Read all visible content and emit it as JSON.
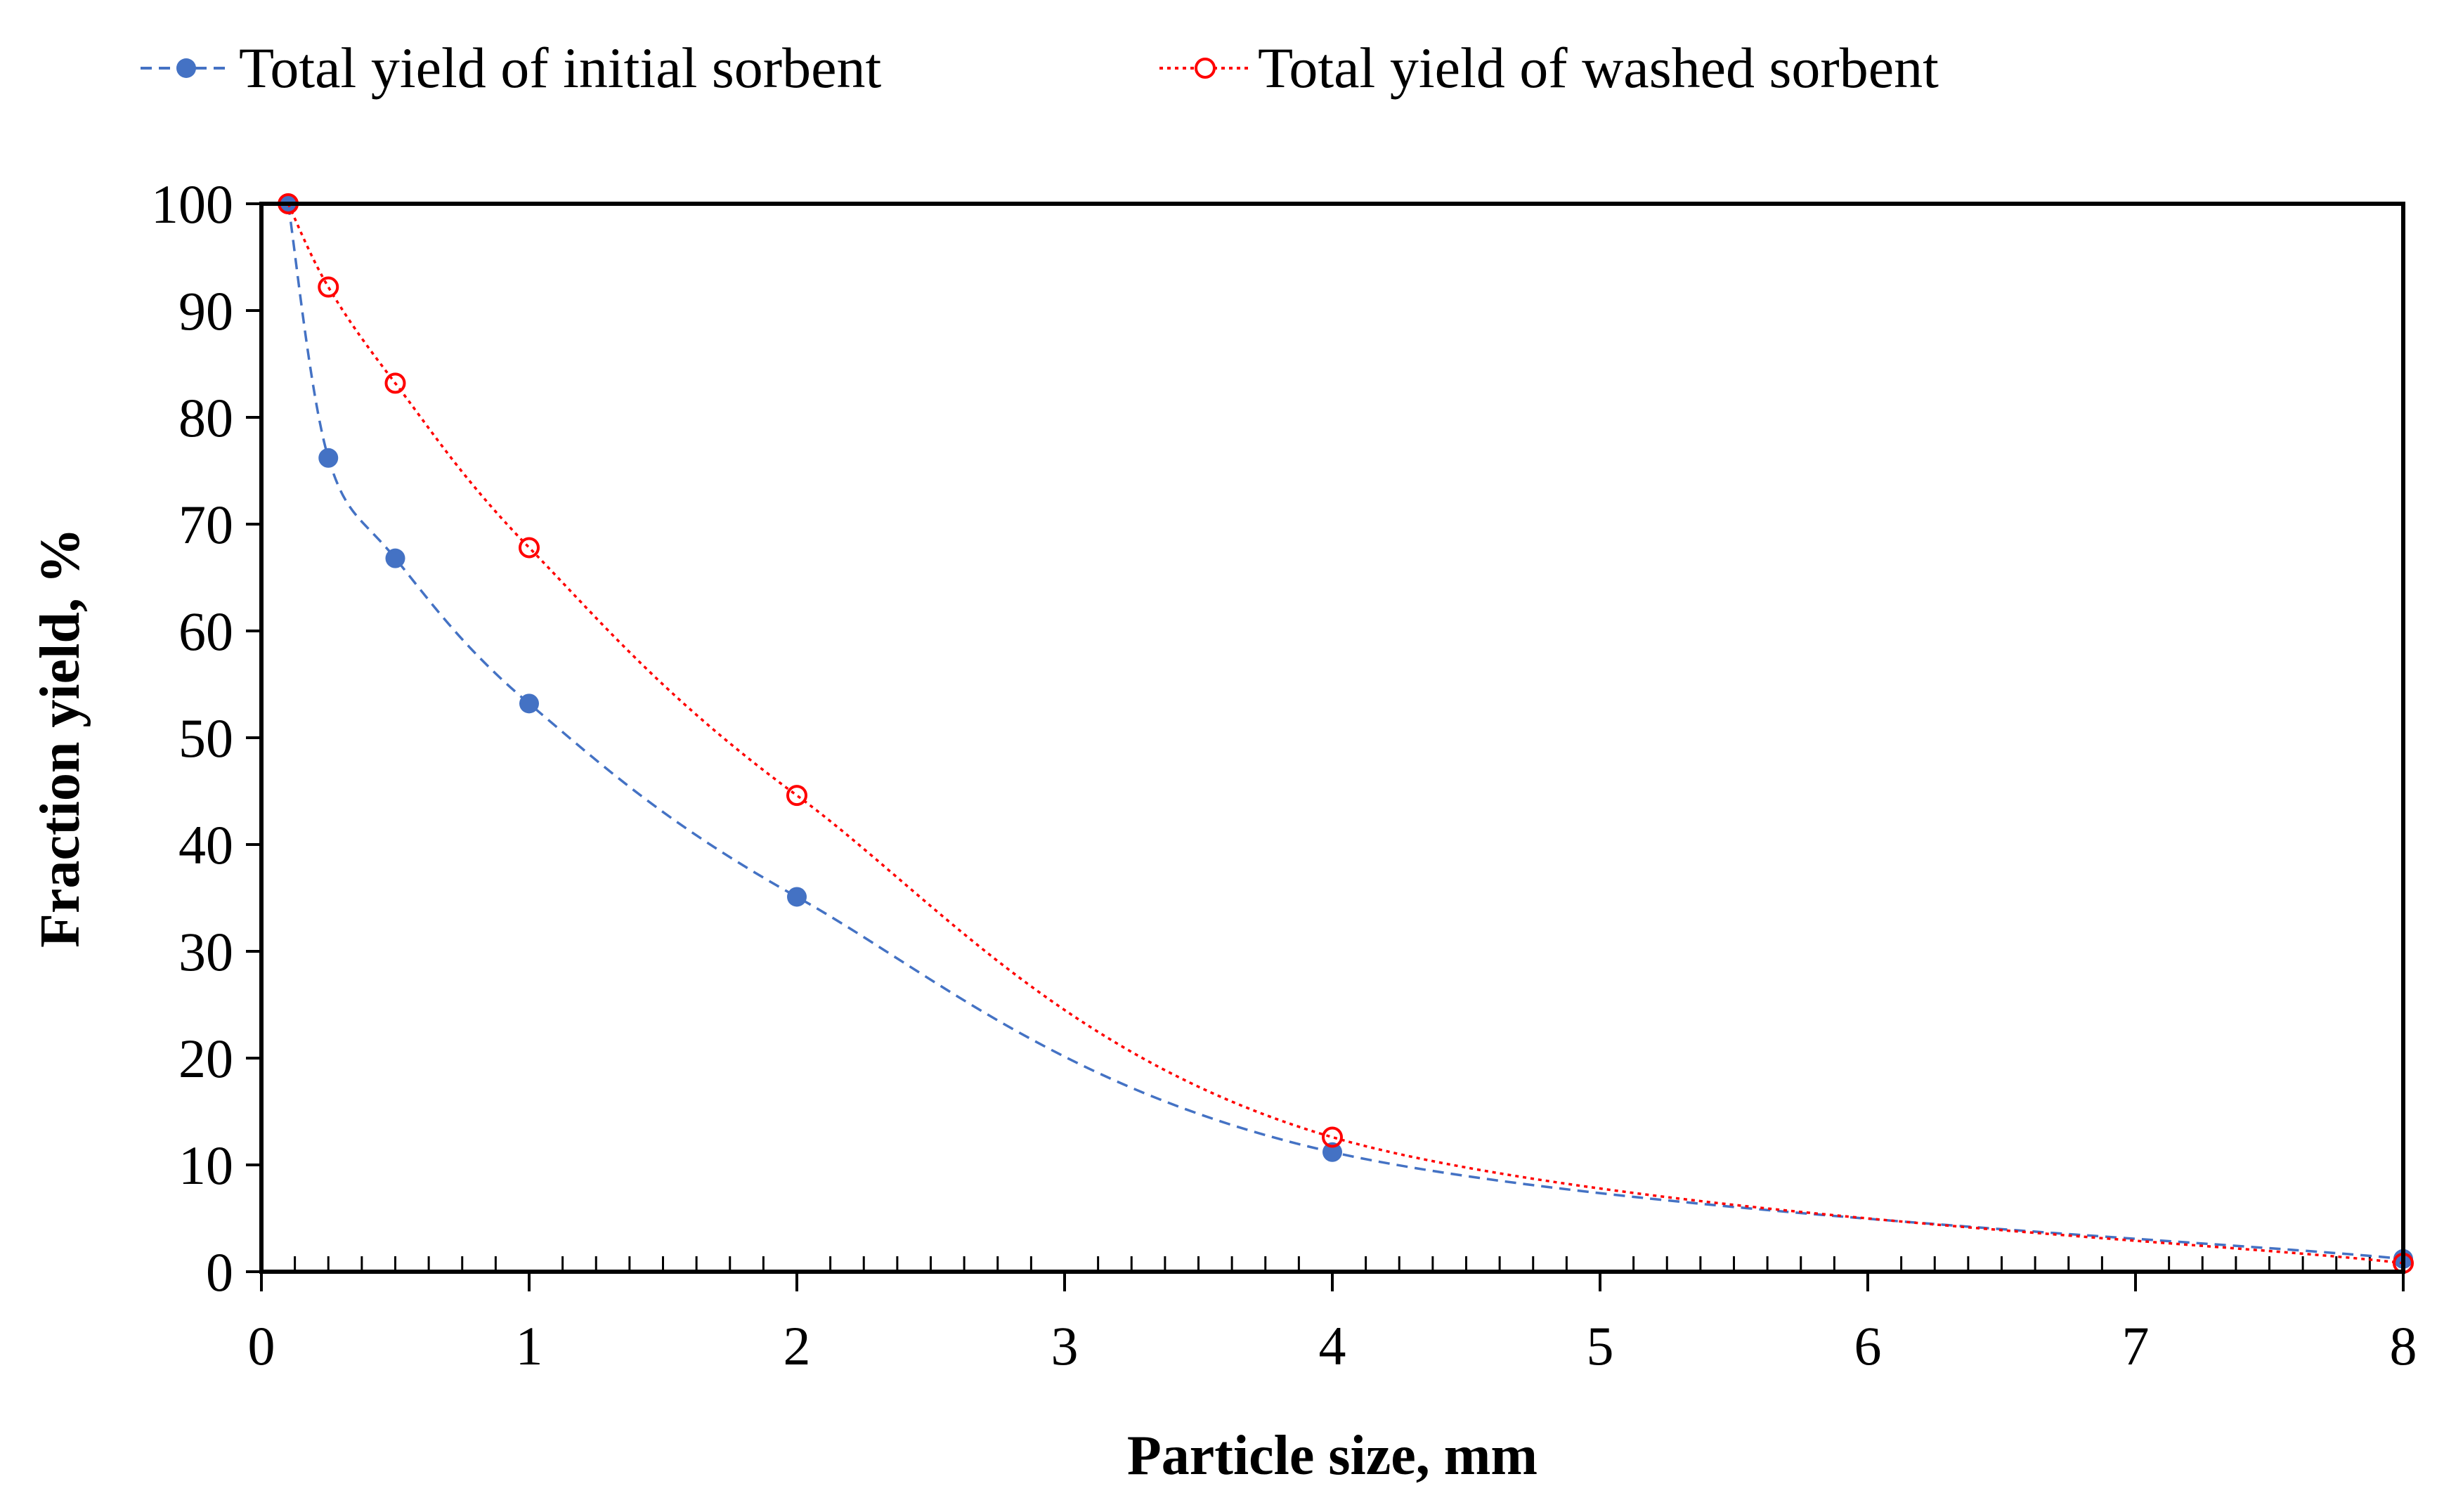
{
  "chart_data": {
    "type": "line",
    "title": "",
    "xlabel": "Particle size, mm",
    "ylabel": "Fraction yield, %",
    "xlim": [
      0,
      8
    ],
    "ylim": [
      0,
      100
    ],
    "x_ticks": [
      "0",
      "1",
      "2",
      "3",
      "4",
      "5",
      "6",
      "7",
      "8"
    ],
    "y_ticks": [
      "0",
      "10",
      "20",
      "30",
      "40",
      "50",
      "60",
      "70",
      "80",
      "90",
      "100"
    ],
    "grid": false,
    "legend_position": "top",
    "series": [
      {
        "name": "Total yield of initial sorbent",
        "color": "#4472C4",
        "line_style": "dashed",
        "marker": "filled-circle",
        "x": [
          0.1,
          0.25,
          0.5,
          1,
          2,
          4,
          8
        ],
        "y": [
          100,
          76.2,
          66.8,
          53.2,
          35.1,
          11.2,
          1.2
        ]
      },
      {
        "name": "Total yield of washed sorbent",
        "color": "#FF0000",
        "line_style": "dotted",
        "marker": "open-circle",
        "x": [
          0.1,
          0.25,
          0.5,
          1,
          2,
          4,
          8
        ],
        "y": [
          100,
          92.2,
          83.2,
          67.8,
          44.6,
          12.6,
          0.8
        ]
      }
    ]
  }
}
